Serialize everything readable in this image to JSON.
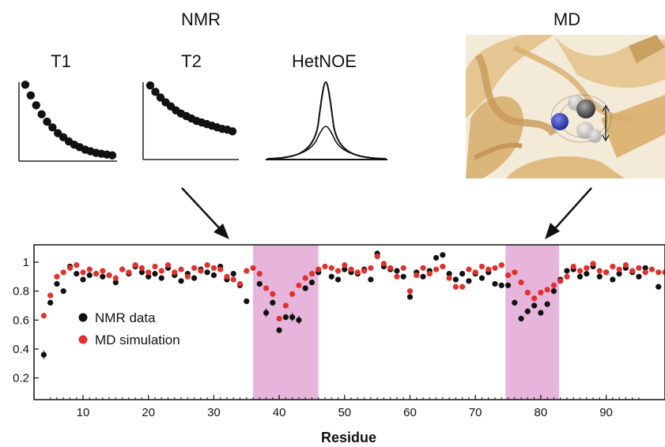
{
  "headings": {
    "nmr": "NMR",
    "md": "MD",
    "t1": "T1",
    "t2": "T2",
    "hetnoe": "HetNOE"
  },
  "colors": {
    "nmr_points": "#111111",
    "md_points": "#e0312c",
    "highlight": "#e7b5dc",
    "structure": "#e9c48a",
    "nitrogen": "#2f3fb3",
    "carbon": "#4d4d4d"
  },
  "chart_data": {
    "type": "scatter",
    "xlabel": "Residue",
    "ylabel": "",
    "xlim": [
      2.5,
      99
    ],
    "ylim": [
      0.05,
      1.12
    ],
    "xticks": [
      "10",
      "20",
      "30",
      "40",
      "50",
      "60",
      "70",
      "80",
      "90"
    ],
    "yticks": [
      "0.2",
      "0.4",
      "0.6",
      "0.8",
      "1"
    ],
    "highlight_ranges": [
      [
        36,
        46
      ],
      [
        74.6,
        82.8
      ]
    ],
    "legend": {
      "placement": "center-left",
      "entries": [
        "NMR data",
        "MD simulation"
      ]
    },
    "series": [
      {
        "name": "NMR data",
        "color": "#111111",
        "x": [
          4,
          5,
          6,
          7,
          8,
          9,
          10,
          11,
          12,
          13,
          14,
          15,
          16,
          17,
          18,
          19,
          20,
          21,
          22,
          23,
          24,
          25,
          26,
          27,
          28,
          29,
          30,
          31,
          32,
          33,
          34,
          35,
          37,
          38,
          39,
          40,
          41,
          42,
          43,
          44,
          45,
          46,
          48,
          49,
          50,
          51,
          52,
          53,
          54,
          55,
          56,
          57,
          58,
          59,
          60,
          61,
          62,
          63,
          64,
          65,
          66,
          67,
          68,
          69,
          70,
          71,
          72,
          73,
          74,
          75,
          76,
          77,
          78,
          79,
          80,
          81,
          82,
          83,
          84,
          85,
          86,
          87,
          88,
          89,
          90,
          91,
          92,
          93,
          94,
          95,
          96,
          98
        ],
        "y": [
          0.36,
          0.72,
          0.85,
          0.8,
          0.97,
          0.92,
          0.88,
          0.91,
          0.92,
          0.9,
          0.91,
          0.86,
          0.95,
          0.92,
          0.97,
          0.93,
          0.9,
          0.92,
          0.89,
          0.96,
          0.91,
          0.87,
          0.92,
          0.89,
          0.95,
          0.93,
          0.91,
          0.97,
          0.88,
          0.92,
          0.84,
          0.73,
          0.85,
          0.65,
          0.72,
          0.53,
          0.62,
          0.62,
          0.6,
          0.82,
          0.86,
          0.93,
          0.9,
          0.88,
          0.95,
          0.93,
          0.92,
          0.95,
          0.88,
          1.06,
          0.97,
          0.95,
          0.94,
          0.9,
          0.76,
          0.93,
          0.9,
          0.94,
          1.03,
          1.05,
          0.92,
          0.88,
          0.92,
          0.87,
          0.92,
          0.89,
          0.93,
          0.85,
          0.84,
          0.84,
          0.72,
          0.61,
          0.66,
          0.7,
          0.65,
          0.71,
          0.8,
          0.88,
          0.94,
          0.95,
          0.9,
          0.92,
          0.97,
          0.9,
          0.93,
          0.88,
          0.92,
          0.96,
          0.93,
          0.9,
          0.96,
          0.83
        ],
        "error": [
          0.03,
          0.02,
          0.02,
          0.02,
          0.01,
          0.01,
          0.01,
          0.01,
          0.01,
          0.01,
          0.01,
          0.01,
          0.01,
          0.01,
          0.01,
          0.01,
          0.01,
          0.01,
          0.01,
          0.01,
          0.01,
          0.01,
          0.01,
          0.01,
          0.01,
          0.01,
          0.01,
          0.01,
          0.01,
          0.01,
          0.02,
          0.02,
          0.02,
          0.03,
          0.02,
          0.02,
          0.02,
          0.03,
          0.03,
          0.02,
          0.01,
          0.01,
          0.01,
          0.01,
          0.01,
          0.01,
          0.01,
          0.01,
          0.01,
          0.02,
          0.01,
          0.01,
          0.01,
          0.01,
          0.02,
          0.01,
          0.01,
          0.01,
          0.01,
          0.01,
          0.01,
          0.01,
          0.01,
          0.01,
          0.01,
          0.01,
          0.01,
          0.01,
          0.02,
          0.02,
          0.02,
          0.02,
          0.02,
          0.02,
          0.02,
          0.02,
          0.02,
          0.01,
          0.01,
          0.01,
          0.01,
          0.01,
          0.01,
          0.01,
          0.01,
          0.01,
          0.01,
          0.01,
          0.01,
          0.01,
          0.01,
          0.02
        ]
      },
      {
        "name": "MD simulation",
        "color": "#e0312c",
        "x": [
          4,
          5,
          6,
          7,
          8,
          9,
          10,
          11,
          12,
          13,
          14,
          15,
          16,
          17,
          18,
          19,
          20,
          21,
          22,
          23,
          24,
          25,
          26,
          27,
          28,
          29,
          30,
          31,
          32,
          33,
          34,
          35,
          36,
          37,
          38,
          39,
          40,
          41,
          42,
          43,
          44,
          45,
          46,
          47,
          48,
          49,
          50,
          51,
          52,
          53,
          54,
          55,
          56,
          57,
          58,
          59,
          60,
          61,
          62,
          63,
          64,
          65,
          66,
          67,
          68,
          69,
          70,
          71,
          72,
          73,
          74,
          75,
          76,
          77,
          78,
          79,
          80,
          81,
          82,
          83,
          84,
          85,
          86,
          87,
          88,
          89,
          90,
          91,
          92,
          93,
          94,
          95,
          96,
          97,
          98,
          99
        ],
        "y": [
          0.63,
          0.77,
          0.9,
          0.93,
          0.96,
          0.98,
          0.93,
          0.95,
          0.92,
          0.94,
          0.91,
          0.89,
          0.95,
          0.93,
          0.98,
          0.96,
          0.93,
          0.97,
          0.94,
          0.98,
          0.93,
          0.95,
          0.9,
          0.96,
          0.94,
          0.98,
          0.96,
          0.95,
          0.9,
          0.88,
          0.85,
          0.94,
          0.96,
          0.92,
          0.82,
          0.78,
          0.61,
          0.7,
          0.78,
          0.84,
          0.89,
          0.92,
          0.95,
          0.97,
          0.96,
          0.94,
          0.98,
          0.95,
          0.93,
          0.94,
          0.96,
          1.04,
          0.99,
          0.96,
          0.9,
          0.96,
          0.8,
          0.91,
          0.96,
          0.92,
          0.95,
          0.97,
          0.89,
          0.83,
          0.83,
          0.95,
          0.93,
          0.97,
          0.95,
          0.96,
          0.98,
          0.91,
          0.93,
          0.86,
          0.79,
          0.75,
          0.79,
          0.81,
          0.84,
          0.87,
          0.9,
          0.97,
          0.94,
          0.96,
          0.99,
          0.94,
          0.93,
          0.97,
          0.95,
          0.98,
          0.94,
          0.96,
          0.93,
          0.95,
          0.93,
          0.93
        ]
      }
    ]
  },
  "insets": {
    "t1": {
      "type": "line",
      "x": [
        0,
        1,
        2,
        3,
        4,
        5,
        6,
        7,
        8,
        9,
        10,
        11,
        12,
        13,
        14,
        15,
        16
      ],
      "y": [
        0.93,
        0.8,
        0.68,
        0.57,
        0.48,
        0.41,
        0.34,
        0.29,
        0.24,
        0.2,
        0.17,
        0.14,
        0.12,
        0.1,
        0.09,
        0.08,
        0.07
      ]
    },
    "t2": {
      "type": "line",
      "x": [
        0,
        1,
        2,
        3,
        4,
        5,
        6,
        7,
        8,
        9,
        10,
        11,
        12,
        13,
        14,
        15,
        16
      ],
      "y": [
        0.92,
        0.84,
        0.77,
        0.71,
        0.66,
        0.61,
        0.57,
        0.54,
        0.51,
        0.48,
        0.46,
        0.44,
        0.42,
        0.4,
        0.38,
        0.37,
        0.35
      ]
    }
  }
}
